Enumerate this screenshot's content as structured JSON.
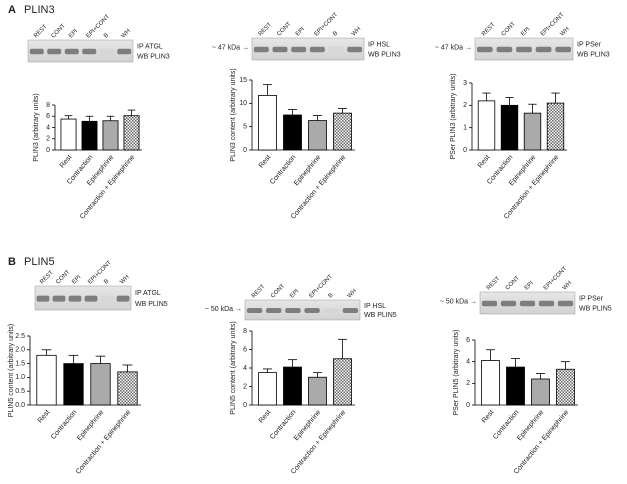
{
  "panels": [
    {
      "label": "A",
      "title": "PLIN3",
      "blots": [
        {
          "lanes": [
            "REST",
            "CONT",
            "EPI",
            "EPI+CONT",
            "B",
            "WH"
          ],
          "ip": "IP ATGL",
          "wb": "WB PLIN3"
        },
        {
          "lanes": [
            "REST",
            "CONT",
            "EPI",
            "EPI+CONT",
            "B",
            "WH"
          ],
          "ip": "IP HSL",
          "wb": "WB PLIN3",
          "marker": "~ 47 kDa →"
        },
        {
          "lanes": [
            "REST",
            "CONT",
            "EPI",
            "EPI+CONT",
            "WH"
          ],
          "ip": "IP PSer",
          "wb": "WB PLIN3",
          "marker": "~ 47 kDa →"
        }
      ]
    },
    {
      "label": "B",
      "title": "PLIN5",
      "blots": [
        {
          "lanes": [
            "REST",
            "CONT",
            "EPI",
            "EPI+CONT",
            "B",
            "WH"
          ],
          "ip": "IP ATGL",
          "wb": "WB PLIN5"
        },
        {
          "lanes": [
            "REST",
            "CONT",
            "EPI",
            "EPI+CONT",
            "B",
            "WH"
          ],
          "ip": "IP HSL",
          "wb": "WB PLIN5",
          "marker": "~ 50 kDa →"
        },
        {
          "lanes": [
            "REST",
            "CONT",
            "EPI",
            "EPI+CONT",
            "WH"
          ],
          "ip": "IP PSer",
          "wb": "WB PLIN5",
          "marker": "~ 50 kDa →"
        }
      ]
    }
  ],
  "chart_data": [
    {
      "type": "bar",
      "ylabel": "PLIN3 (arbitrary units)",
      "categories": [
        "Rest",
        "Contraction",
        "Epinephrine",
        "Contraction + Epinephrine"
      ],
      "values": [
        5.5,
        5.1,
        5.2,
        6.1
      ],
      "errors": [
        0.6,
        0.9,
        0.8,
        1.0
      ],
      "colors": [
        "#ffffff",
        "#000000",
        "#aaaaaa",
        "#666666"
      ],
      "hatch": [
        false,
        false,
        false,
        true
      ],
      "ylim": [
        0,
        8
      ],
      "yticks": [
        0,
        2,
        4,
        6,
        8
      ]
    },
    {
      "type": "bar",
      "ylabel": "PLIN3 content (arbitrary units)",
      "categories": [
        "Rest",
        "Contraction",
        "Epinephrine",
        "Contraction + Epinephrine"
      ],
      "values": [
        11.7,
        7.5,
        6.3,
        7.9
      ],
      "errors": [
        2.3,
        1.2,
        1.1,
        1.0
      ],
      "colors": [
        "#ffffff",
        "#000000",
        "#aaaaaa",
        "#666666"
      ],
      "hatch": [
        false,
        false,
        false,
        true
      ],
      "ylim": [
        0,
        15
      ],
      "yticks": [
        0,
        5,
        10,
        15
      ]
    },
    {
      "type": "bar",
      "ylabel": "PSer PLIN3 (arbitrary units)",
      "categories": [
        "Rest",
        "Contraction",
        "Epinephrine",
        "Contraction + Epinephrine"
      ],
      "values": [
        2.2,
        2.0,
        1.65,
        2.1
      ],
      "errors": [
        0.35,
        0.35,
        0.4,
        0.45
      ],
      "colors": [
        "#ffffff",
        "#000000",
        "#aaaaaa",
        "#666666"
      ],
      "hatch": [
        false,
        false,
        false,
        true
      ],
      "ylim": [
        0,
        3
      ],
      "yticks": [
        0,
        1,
        2,
        3
      ]
    },
    {
      "type": "bar",
      "ylabel": "PLIN5 content (arbitrary units)",
      "categories": [
        "Rest",
        "Contraction",
        "Epinephrine",
        "Contraction + Epinephrine"
      ],
      "values": [
        1.8,
        1.5,
        1.5,
        1.2
      ],
      "errors": [
        0.2,
        0.3,
        0.27,
        0.25
      ],
      "colors": [
        "#ffffff",
        "#000000",
        "#aaaaaa",
        "#666666"
      ],
      "hatch": [
        false,
        false,
        false,
        true
      ],
      "ylim": [
        0,
        2.5
      ],
      "yticks": [
        {
          "value": 0,
          "label": "0.0"
        },
        0.5,
        {
          "value": 1,
          "label": "1.0"
        },
        1.5,
        {
          "value": 2,
          "label": "2.0"
        },
        2.5
      ]
    },
    {
      "type": "bar",
      "ylabel": "PLIN5 content (arbitrary units)",
      "categories": [
        "Rest",
        "Contraction",
        "Epinephrine",
        "Contraction + Epinephrine"
      ],
      "values": [
        3.5,
        4.1,
        3.0,
        5.0
      ],
      "errors": [
        0.4,
        0.8,
        0.5,
        2.1
      ],
      "colors": [
        "#ffffff",
        "#000000",
        "#aaaaaa",
        "#666666"
      ],
      "hatch": [
        false,
        false,
        false,
        true
      ],
      "ylim": [
        0,
        8
      ],
      "yticks": [
        0,
        2,
        4,
        6,
        8
      ]
    },
    {
      "type": "bar",
      "ylabel": "PSer PLIN5 (arbitrary units)",
      "categories": [
        "Rest",
        "Contraction",
        "Epinephrine",
        "Contraction + Epinephrine"
      ],
      "values": [
        4.1,
        3.5,
        2.4,
        3.3
      ],
      "errors": [
        1.0,
        0.8,
        0.5,
        0.7
      ],
      "colors": [
        "#ffffff",
        "#000000",
        "#aaaaaa",
        "#666666"
      ],
      "hatch": [
        false,
        false,
        false,
        true
      ],
      "ylim": [
        0,
        6
      ],
      "yticks": [
        0,
        2,
        4,
        6
      ]
    }
  ]
}
